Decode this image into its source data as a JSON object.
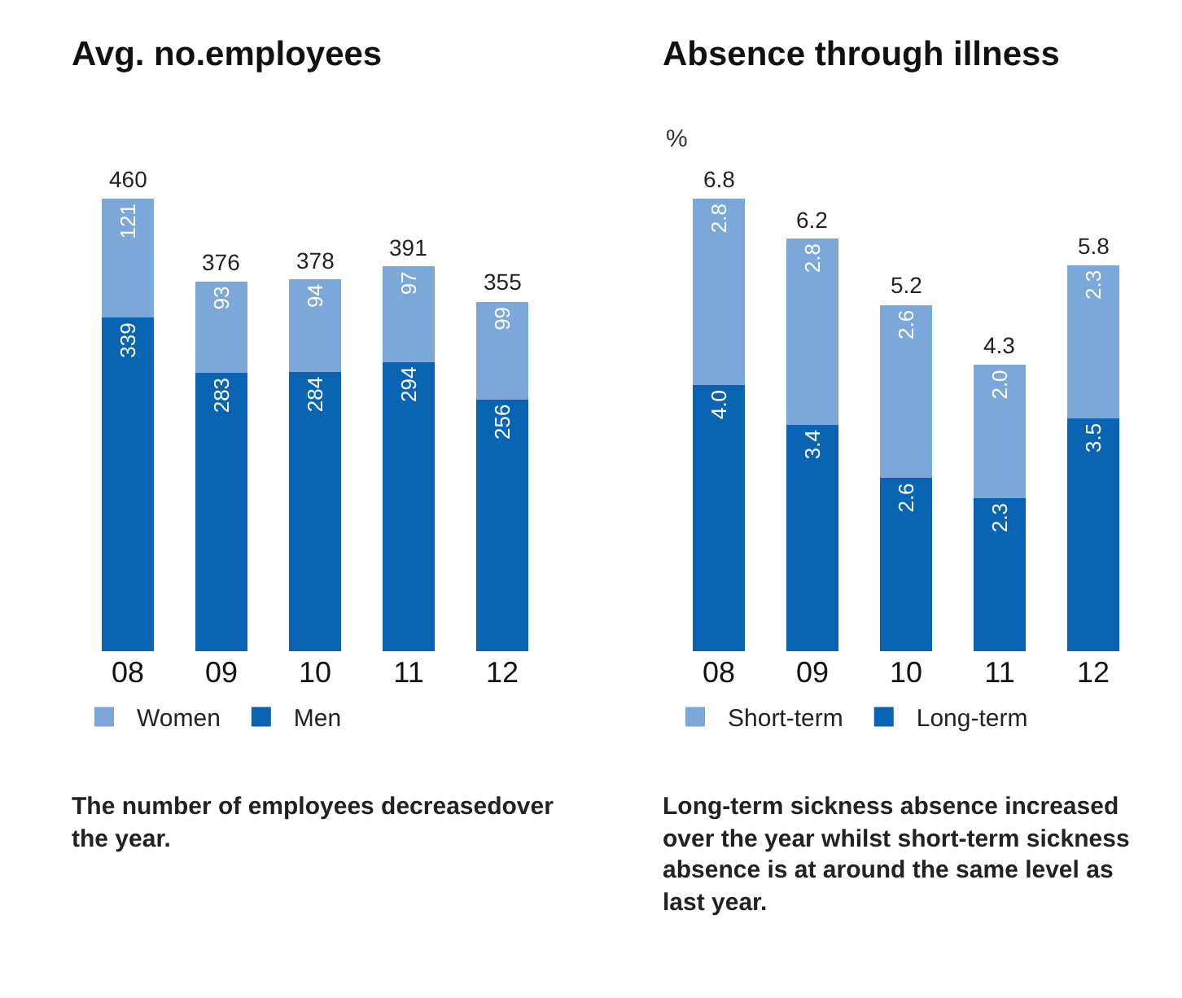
{
  "chart_data": [
    {
      "type": "bar",
      "title": "Avg. no.employees",
      "categories": [
        "08",
        "09",
        "10",
        "11",
        "12"
      ],
      "stacked": true,
      "legend": "bottom",
      "series": [
        {
          "name": "Men",
          "color": "#0a64b4",
          "values": [
            339,
            283,
            284,
            294,
            256
          ],
          "value_labels": [
            "339",
            "283",
            "284",
            "294",
            "256"
          ]
        },
        {
          "name": "Women",
          "color": "#7ba7d9",
          "values": [
            121,
            93,
            94,
            97,
            99
          ],
          "value_labels": [
            "121",
            "93",
            "94",
            "97",
            "99"
          ]
        }
      ],
      "totals": [
        "460",
        "376",
        "378",
        "391",
        "355"
      ],
      "annotations": [
        "The number of employees decreasedover the year."
      ]
    },
    {
      "type": "bar",
      "title": "Absence through illness",
      "ylabel": "%",
      "categories": [
        "08",
        "09",
        "10",
        "11",
        "12"
      ],
      "stacked": true,
      "legend": "bottom",
      "series": [
        {
          "name": "Long-term",
          "color": "#0a64b4",
          "values": [
            4.0,
            3.4,
            2.6,
            2.3,
            3.5
          ],
          "value_labels": [
            "4.0",
            "3.4",
            "2.6",
            "2.3",
            "3.5"
          ]
        },
        {
          "name": "Short-term",
          "color": "#7ba7d9",
          "values": [
            2.8,
            2.8,
            2.6,
            2.0,
            2.3
          ],
          "value_labels": [
            "2.8",
            "2.8",
            "2.6",
            "2.0",
            "2.3"
          ]
        }
      ],
      "totals": [
        "6.8",
        "6.2",
        "5.2",
        "4.3",
        "5.8"
      ],
      "annotations": [
        "Long-term sickness absence increased over the year whilst short-term sickness absence is at around the same level as last year."
      ]
    }
  ]
}
